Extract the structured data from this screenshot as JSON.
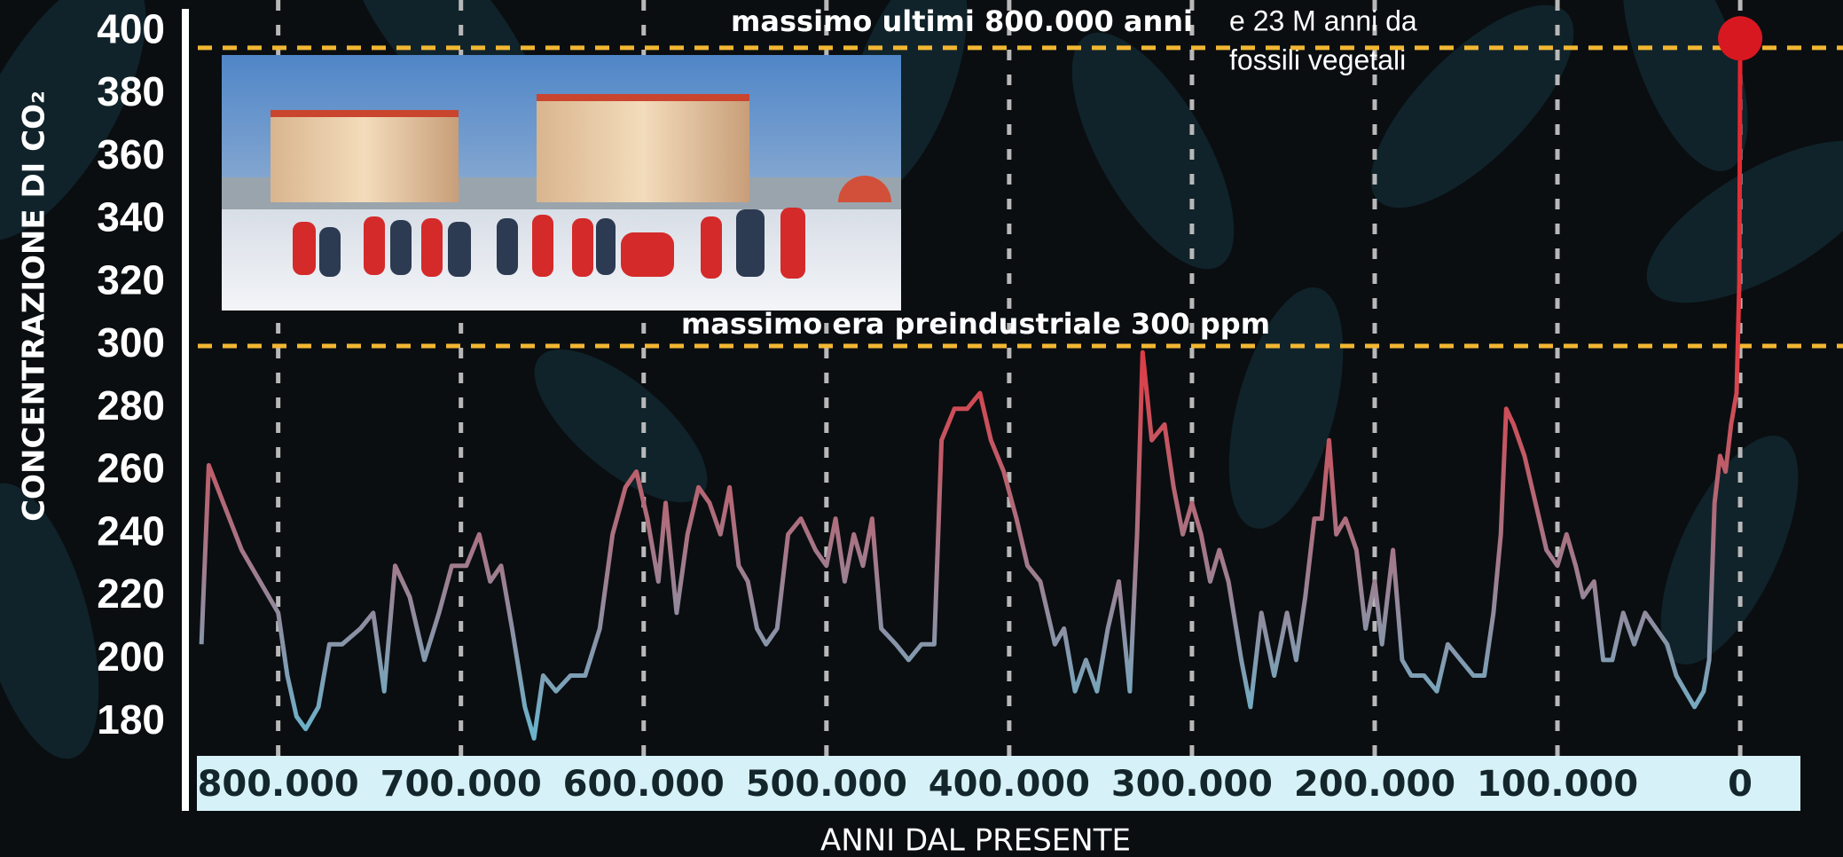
{
  "chart_data": {
    "type": "line",
    "y_label": "CONCENTRAZIONE DI CO₂",
    "x_label": "ANNI DAL PRESENTE",
    "x": [
      842000,
      838000,
      830000,
      820000,
      810000,
      800000,
      795000,
      790000,
      785000,
      778000,
      772000,
      765000,
      755000,
      748000,
      742000,
      736000,
      728000,
      720000,
      712000,
      705000,
      697000,
      690000,
      684000,
      678000,
      672000,
      665000,
      660000,
      655000,
      648000,
      640000,
      632000,
      624000,
      617000,
      610000,
      604000,
      598000,
      592000,
      588000,
      582000,
      576000,
      570000,
      564000,
      558000,
      553000,
      548000,
      543000,
      538000,
      533000,
      527000,
      521000,
      514000,
      506000,
      500000,
      495000,
      490000,
      485000,
      480000,
      475000,
      470000,
      462000,
      455000,
      448000,
      441000,
      437000,
      430000,
      423000,
      416000,
      410000,
      403000,
      396000,
      390000,
      383000,
      375000,
      370000,
      364000,
      358000,
      352000,
      346000,
      340000,
      334000,
      330000,
      327000,
      322000,
      315000,
      310000,
      305000,
      300000,
      295000,
      290000,
      285000,
      280000,
      273000,
      268000,
      262000,
      255000,
      248000,
      243000,
      238000,
      233000,
      229000,
      225000,
      221000,
      216000,
      210000,
      205000,
      200000,
      196000,
      190000,
      185000,
      180000,
      173000,
      166000,
      160000,
      153000,
      146000,
      140000,
      135000,
      131000,
      128000,
      124000,
      118000,
      112000,
      106000,
      100000,
      95000,
      90000,
      86000,
      80000,
      75000,
      70000,
      64000,
      58000,
      52000,
      46000,
      40000,
      35000,
      30000,
      25000,
      20000,
      17000,
      14000,
      11000,
      8000,
      5000,
      2000,
      500,
      0
    ],
    "values": [
      205,
      262,
      250,
      235,
      225,
      215,
      195,
      182,
      178,
      185,
      205,
      205,
      210,
      215,
      190,
      230,
      220,
      200,
      215,
      230,
      230,
      240,
      225,
      230,
      210,
      185,
      175,
      195,
      190,
      195,
      195,
      210,
      240,
      255,
      260,
      245,
      225,
      250,
      215,
      240,
      255,
      250,
      240,
      255,
      230,
      225,
      210,
      205,
      210,
      240,
      245,
      235,
      230,
      245,
      225,
      240,
      230,
      245,
      210,
      205,
      200,
      205,
      205,
      270,
      280,
      280,
      285,
      270,
      260,
      245,
      230,
      225,
      205,
      210,
      190,
      200,
      190,
      210,
      225,
      190,
      240,
      298,
      270,
      275,
      255,
      240,
      250,
      240,
      225,
      235,
      225,
      200,
      185,
      215,
      195,
      215,
      200,
      220,
      245,
      245,
      270,
      240,
      245,
      235,
      210,
      225,
      205,
      235,
      200,
      195,
      195,
      190,
      205,
      200,
      195,
      195,
      215,
      240,
      280,
      275,
      265,
      250,
      235,
      230,
      240,
      230,
      220,
      225,
      200,
      200,
      215,
      205,
      215,
      210,
      205,
      195,
      190,
      185,
      190,
      200,
      250,
      265,
      260,
      275,
      285,
      320,
      398
    ],
    "xlim": [
      844000,
      -31500
    ],
    "ylim": [
      170,
      406
    ],
    "xticks": [
      {
        "value": 800000,
        "label": "800.000"
      },
      {
        "value": 700000,
        "label": "700.000"
      },
      {
        "value": 600000,
        "label": "600.000"
      },
      {
        "value": 500000,
        "label": "500.000"
      },
      {
        "value": 400000,
        "label": "400.000"
      },
      {
        "value": 300000,
        "label": "300.000"
      },
      {
        "value": 200000,
        "label": "200.000"
      },
      {
        "value": 100000,
        "label": "100.000"
      },
      0
    ],
    "yticks": [
      180,
      200,
      220,
      240,
      260,
      280,
      300,
      320,
      340,
      360,
      380,
      400
    ],
    "grid": true,
    "line_colors": [
      "#e8202a",
      "#de3c44",
      "#a87484",
      "#6ab4cc"
    ],
    "highlight_last": true,
    "highlight_color": "#d81820",
    "reference_color": "#f2b632",
    "reference_lines": [
      {
        "value": 395,
        "label": "massimo ultimi 800.000 anni"
      },
      {
        "value": 300,
        "label": "massimo era preindustriale 300 ppm"
      }
    ],
    "annotations": [
      "e 23 M anni da",
      "fossili vegetali"
    ]
  }
}
